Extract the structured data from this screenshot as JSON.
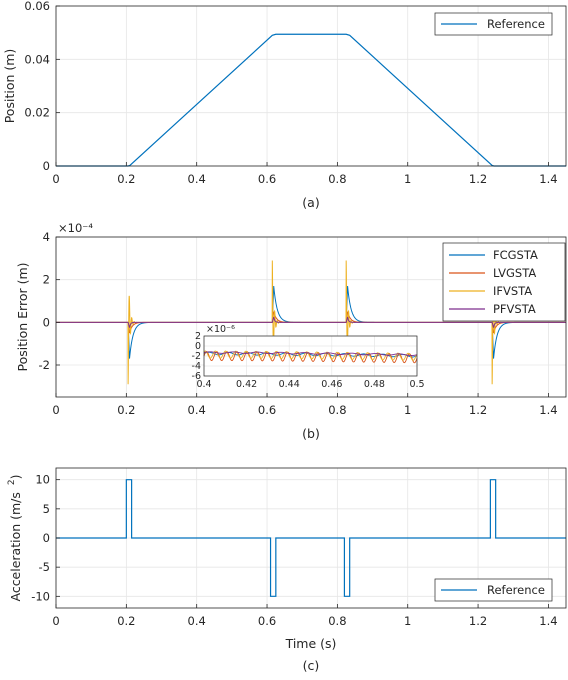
{
  "chart_data": [
    {
      "id": "a",
      "type": "line",
      "caption": "(a)",
      "xlabel": "",
      "ylabel": "Position (m)",
      "xlim": [
        0,
        1.45
      ],
      "ylim": [
        0,
        0.06
      ],
      "xticks": [
        "0",
        "0.2",
        "0.4",
        "0.6",
        "0.8",
        "1",
        "1.2",
        "1.4"
      ],
      "yticks": [
        "0",
        "0.02",
        "0.04",
        "0.06"
      ],
      "grid": true,
      "legend_position": "top-right",
      "series": [
        {
          "name": "Reference",
          "color": "#0072BD",
          "x": [
            0,
            0.205,
            0.21,
            0.615,
            0.625,
            0.825,
            0.835,
            1.24,
            1.245,
            1.45
          ],
          "y": [
            0,
            0,
            0.0002,
            0.049,
            0.0494,
            0.0494,
            0.049,
            0.0002,
            0,
            0
          ]
        }
      ]
    },
    {
      "id": "b",
      "type": "line",
      "caption": "(b)",
      "xlabel": "",
      "ylabel": "Position Error (m)",
      "y_exponent": "×10⁻⁴",
      "xlim": [
        0,
        1.45
      ],
      "ylim": [
        -3.5,
        4
      ],
      "xticks": [
        "0",
        "0.2",
        "0.4",
        "0.6",
        "0.8",
        "1",
        "1.2",
        "1.4"
      ],
      "yticks": [
        "-2",
        "0",
        "2",
        "4"
      ],
      "grid": true,
      "legend_position": "top-right",
      "series": [
        {
          "name": "FCGSTA",
          "color": "#0072BD",
          "peak": 1.7,
          "tau": 0.01,
          "osc": 0
        },
        {
          "name": "LVGSTA",
          "color": "#D95319",
          "peak": 0.5,
          "tau": 0.008,
          "osc": 0
        },
        {
          "name": "IFVSTA",
          "color": "#EDB120",
          "peak": 2.9,
          "tau": 0.004,
          "osc": 1
        },
        {
          "name": "PFVSTA",
          "color": "#7E2F8E",
          "peak": 0.25,
          "tau": 0.003,
          "osc": 0
        }
      ],
      "events": [
        {
          "t": 0.205,
          "sign": -1
        },
        {
          "t": 0.615,
          "sign": 1
        },
        {
          "t": 0.825,
          "sign": 1
        },
        {
          "t": 1.24,
          "sign": -1
        }
      ],
      "inset": {
        "y_exponent": "×10⁻⁶",
        "xlim": [
          0.4,
          0.5
        ],
        "ylim": [
          -6,
          2
        ],
        "xticks": [
          "0.4",
          "0.42",
          "0.44",
          "0.46",
          "0.48",
          "0.5"
        ],
        "yticks": [
          "2",
          "0",
          "-2",
          "-4",
          "-6"
        ]
      }
    },
    {
      "id": "c",
      "type": "line",
      "caption": "(c)",
      "xlabel": "Time (s)",
      "ylabel": "Acceleration (m/s",
      "ylabel_superscript": "2",
      "ylabel_close": ")",
      "xlim": [
        0,
        1.45
      ],
      "ylim": [
        -12,
        12
      ],
      "xticks": [
        "0",
        "0.2",
        "0.4",
        "0.6",
        "0.8",
        "1",
        "1.2",
        "1.4"
      ],
      "yticks": [
        "-10",
        "-5",
        "0",
        "5",
        "10"
      ],
      "grid": true,
      "legend_position": "bottom-right",
      "series": [
        {
          "name": "Reference",
          "color": "#0072BD",
          "x": [
            0,
            0.2,
            0.2,
            0.215,
            0.215,
            0.61,
            0.61,
            0.625,
            0.625,
            0.82,
            0.82,
            0.835,
            0.835,
            1.235,
            1.235,
            1.25,
            1.25,
            1.45
          ],
          "y": [
            0,
            0,
            10,
            10,
            0,
            0,
            -10,
            -10,
            0,
            0,
            -10,
            -10,
            0,
            0,
            10,
            10,
            0,
            0
          ]
        }
      ]
    }
  ]
}
